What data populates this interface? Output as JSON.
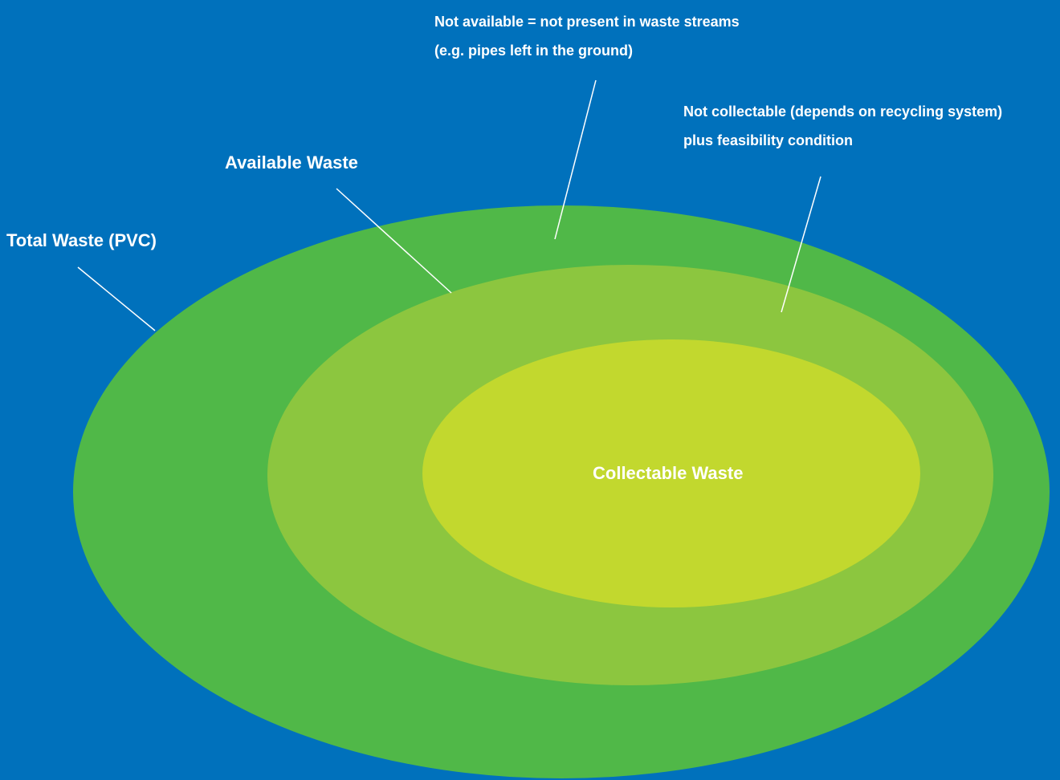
{
  "colors": {
    "background": "#0071BC",
    "total_waste": "#50B848",
    "available_waste": "#8CC63F",
    "collectable_waste": "#C2D82E",
    "text": "#FFFFFF",
    "leader_line": "#FFFFFF"
  },
  "labels": {
    "total_waste": "Total Waste (PVC)",
    "available_waste": "Available Waste",
    "collectable_waste": "Collectable Waste",
    "not_available": {
      "line1": "Not available = not present in waste streams",
      "line2": "(e.g. pipes left in the ground)"
    },
    "not_collectable": {
      "line1": "Not collectable (depends on recycling system)",
      "line2": "plus feasibility condition"
    }
  }
}
